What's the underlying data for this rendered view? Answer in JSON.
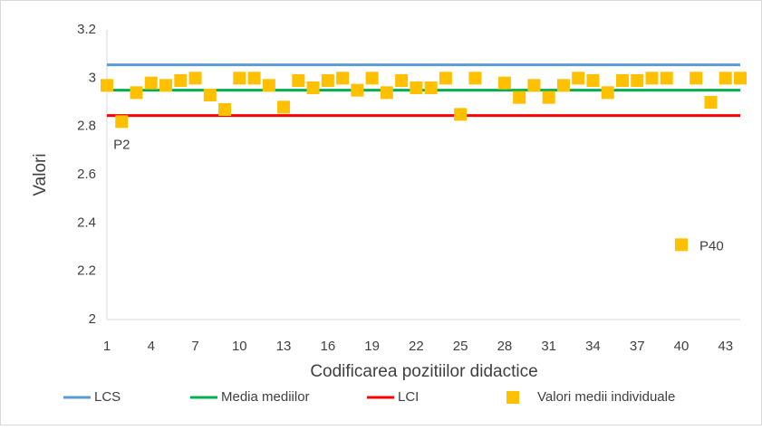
{
  "chart_data": {
    "type": "scatter",
    "x_label": "Codificarea pozitiilor didactice",
    "y_label": "Valori",
    "x": [
      1,
      2,
      3,
      4,
      5,
      6,
      7,
      8,
      9,
      10,
      11,
      12,
      13,
      14,
      15,
      16,
      17,
      18,
      19,
      20,
      21,
      22,
      23,
      24,
      25,
      26,
      27,
      28,
      29,
      30,
      31,
      32,
      33,
      34,
      35,
      36,
      37,
      38,
      39,
      40,
      41,
      42,
      43,
      44
    ],
    "xlim": [
      1,
      44
    ],
    "xticks": [
      1,
      4,
      7,
      10,
      13,
      16,
      19,
      22,
      25,
      28,
      31,
      34,
      37,
      40,
      43
    ],
    "ylim": [
      2,
      3.2
    ],
    "yticks": [
      2,
      2.2,
      2.4,
      2.6,
      2.8,
      3,
      3.2
    ],
    "lines": [
      {
        "name": "LCS",
        "color": "#5b9bd5",
        "value": 3.055
      },
      {
        "name": "Media mediilor",
        "color": "#00b050",
        "value": 2.95
      },
      {
        "name": "LCI",
        "color": "#ff0000",
        "value": 2.845
      }
    ],
    "series": [
      {
        "name": "Valori medii individuale",
        "color": "#ffc000",
        "values": [
          2.97,
          2.82,
          2.94,
          2.98,
          2.97,
          2.99,
          3.0,
          2.93,
          2.87,
          3.0,
          3.0,
          2.97,
          2.88,
          2.99,
          2.96,
          2.99,
          3.0,
          2.95,
          3.0,
          2.94,
          2.99,
          2.96,
          2.96,
          3.0,
          2.85,
          3.0,
          null,
          2.98,
          2.92,
          2.97,
          2.92,
          2.97,
          3.0,
          2.99,
          2.94,
          2.99,
          2.99,
          3.0,
          3.0,
          2.31,
          3.0,
          2.9,
          3.0,
          3.0
        ]
      }
    ],
    "annotations": [
      {
        "text": "P2",
        "index": 1
      },
      {
        "text": "P40",
        "index": 39
      }
    ]
  }
}
